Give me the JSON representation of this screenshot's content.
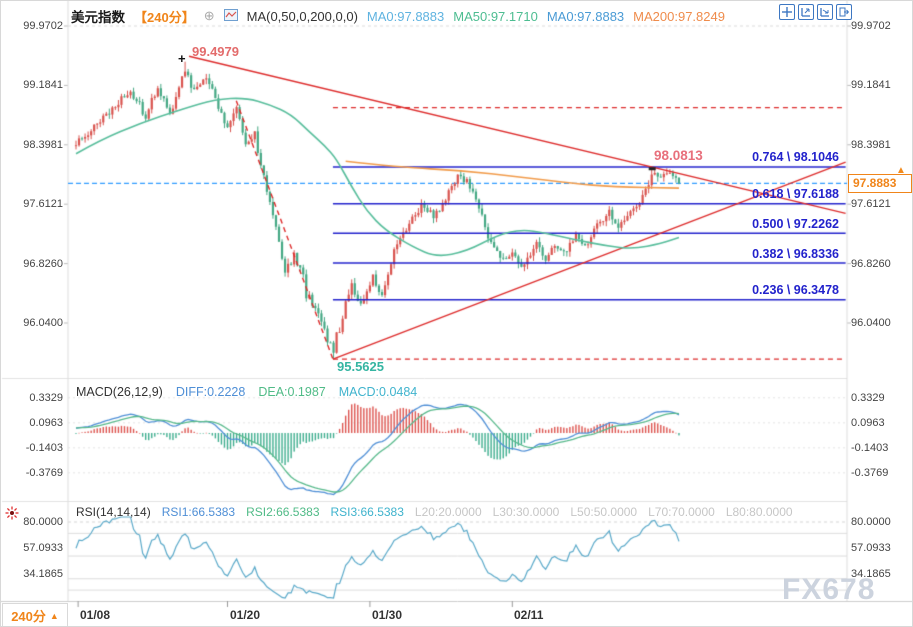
{
  "header": {
    "symbol": "美元指数",
    "period_tag": "【240分】",
    "ma_settings": "MA(0,50,0,200,0,0)",
    "ma_values": [
      {
        "label": "MA0:97.8883"
      },
      {
        "label": "MA50:97.1710"
      },
      {
        "label": "MA0:97.8883"
      },
      {
        "label": "MA200:97.8249"
      }
    ],
    "toolbar_icons": [
      "crosshair",
      "scale-y-axis",
      "scale-x-axis",
      "pop-out"
    ]
  },
  "main_chart": {
    "y_axis": [
      "99.9702",
      "99.1841",
      "98.3981",
      "97.6121",
      "96.8260",
      "96.0400"
    ],
    "annotations": {
      "swing_high": "99.4979",
      "swing_low": "95.5625",
      "recent_high": "98.0813",
      "last_price": "97.8883",
      "last_price_arrow": "▲"
    },
    "fib_levels": [
      {
        "ratio": 0.764,
        "price": 98.1046,
        "label": "0.764 \\ 98.1046"
      },
      {
        "ratio": 0.618,
        "price": 97.6188,
        "label": "0.618 \\ 97.6188"
      },
      {
        "ratio": 0.5,
        "price": 97.2262,
        "label": "0.500 \\ 97.2262"
      },
      {
        "ratio": 0.382,
        "price": 96.8336,
        "label": "0.382 \\ 96.8336"
      },
      {
        "ratio": 0.236,
        "price": 96.3478,
        "label": "0.236 \\ 96.3478"
      }
    ]
  },
  "macd_panel": {
    "title": "MACD(26,12,9)",
    "diff": "DIFF:0.2228",
    "dea": "DEA:0.1987",
    "macd": "MACD:0.0484",
    "y_axis": [
      "0.3329",
      "0.0963",
      "-0.1403",
      "-0.3769"
    ]
  },
  "rsi_panel": {
    "title": "RSI(14,14,14)",
    "rsi1": "RSI1:66.5383",
    "rsi2": "RSI2:66.5383",
    "rsi3": "RSI3:66.5383",
    "l20": "L20:20.0000",
    "l30": "L30:30.0000",
    "l50": "L50:50.0000",
    "l70": "L70:70.0000",
    "l80": "L80:80.0000",
    "y_axis": [
      "80.0000",
      "57.0933",
      "34.1865"
    ]
  },
  "x_axis": {
    "period_button": "240分",
    "period_arrow": "▲",
    "ticks": [
      {
        "label": "01/08",
        "bar": 0.7
      },
      {
        "label": "01/20",
        "bar": 50
      },
      {
        "label": "01/30",
        "bar": 97
      },
      {
        "label": "02/11",
        "bar": 144
      }
    ]
  },
  "watermark": "FX678",
  "colors": {
    "up_candle": "#d9544f",
    "down_candle": "#45a884",
    "ma50_line": "#57bd9b",
    "ma200_line": "#f19b4a",
    "fib_line": "#2222cc",
    "trend_line": "#dd2b2b",
    "last_price_line": "#2f9bff",
    "accent_orange": "#f0851a",
    "diff_line": "#4f8fd6",
    "dea_line": "#57b98b",
    "rsi_line": "#5aa9c9",
    "hist_up": "#dd5550",
    "hist_down": "#3fae8f"
  },
  "chart_data": {
    "type": "candlestick",
    "symbol": "美元指数",
    "timeframe": "240分",
    "bars_visible": 200,
    "y_range": {
      "top_price": 99.9702,
      "bottom_price": 96.04
    },
    "macd_axis": [
      0.3329,
      0.0963,
      -0.1403,
      -0.3769
    ],
    "rsi_axis": [
      80.0,
      57.0933,
      34.1865
    ],
    "rsi_grid_levels": [
      80,
      70,
      50,
      30,
      20
    ],
    "indicators": {
      "macd_params": [
        26,
        12,
        9
      ],
      "rsi_params": [
        14,
        14,
        14
      ],
      "diff": 0.2228,
      "dea": 0.1987,
      "macd": 0.0484,
      "rsi": 66.5383
    },
    "close_anchors": [
      [
        -80,
        97.95
      ],
      [
        -60,
        98.02
      ],
      [
        -40,
        98.12
      ],
      [
        -20,
        98.3
      ],
      [
        -8,
        98.36
      ],
      [
        0,
        98.42
      ],
      [
        8,
        98.72
      ],
      [
        14,
        98.95
      ],
      [
        18,
        99.12
      ],
      [
        23,
        98.78
      ],
      [
        27,
        99.18
      ],
      [
        31,
        98.78
      ],
      [
        36,
        99.4
      ],
      [
        39,
        99.1
      ],
      [
        43,
        99.3
      ],
      [
        47,
        98.9
      ],
      [
        50,
        98.6
      ],
      [
        53,
        98.88
      ],
      [
        56,
        98.4
      ],
      [
        59,
        98.55
      ],
      [
        63,
        97.7
      ],
      [
        66,
        97.3
      ],
      [
        69,
        96.68
      ],
      [
        72,
        97.0
      ],
      [
        76,
        96.45
      ],
      [
        80,
        96.15
      ],
      [
        85,
        95.7
      ],
      [
        88,
        96.15
      ],
      [
        91,
        96.55
      ],
      [
        94,
        96.25
      ],
      [
        98,
        96.65
      ],
      [
        101,
        96.38
      ],
      [
        105,
        97.0
      ],
      [
        110,
        97.38
      ],
      [
        114,
        97.58
      ],
      [
        118,
        97.45
      ],
      [
        122,
        97.68
      ],
      [
        126,
        97.98
      ],
      [
        129,
        97.92
      ],
      [
        133,
        97.55
      ],
      [
        137,
        97.08
      ],
      [
        140,
        96.88
      ],
      [
        144,
        96.95
      ],
      [
        148,
        96.78
      ],
      [
        152,
        97.12
      ],
      [
        155,
        96.88
      ],
      [
        158,
        97.06
      ],
      [
        161,
        96.96
      ],
      [
        165,
        97.18
      ],
      [
        168,
        97.06
      ],
      [
        172,
        97.32
      ],
      [
        176,
        97.52
      ],
      [
        179,
        97.3
      ],
      [
        183,
        97.48
      ],
      [
        187,
        97.72
      ],
      [
        190,
        98.0
      ],
      [
        193,
        97.98
      ],
      [
        196,
        98.02
      ],
      [
        199,
        97.8883
      ]
    ],
    "forced": {
      "high_bar": 36,
      "high": 99.4979,
      "low_bar": 85,
      "low": 95.5625,
      "recent_high_bar": 190,
      "recent_high": 98.0813,
      "last_close": 97.8883
    },
    "ma50_points": [
      [
        0,
        98.28
      ],
      [
        8,
        98.46
      ],
      [
        21,
        98.68
      ],
      [
        35,
        98.87
      ],
      [
        46,
        99.0
      ],
      [
        56,
        99.02
      ],
      [
        64,
        98.93
      ],
      [
        71,
        98.8
      ],
      [
        77,
        98.57
      ],
      [
        82,
        98.39
      ],
      [
        86,
        98.21
      ],
      [
        91,
        97.84
      ],
      [
        96,
        97.52
      ],
      [
        102,
        97.27
      ],
      [
        111,
        97.05
      ],
      [
        119,
        96.91
      ],
      [
        129,
        96.99
      ],
      [
        139,
        97.2
      ],
      [
        147,
        97.28
      ],
      [
        155,
        97.23
      ],
      [
        165,
        97.14
      ],
      [
        175,
        97.06
      ],
      [
        184,
        97.02
      ],
      [
        193,
        97.09
      ],
      [
        199,
        97.171
      ]
    ],
    "ma200_points": [
      [
        89,
        98.18
      ],
      [
        107,
        98.1
      ],
      [
        127,
        98.06
      ],
      [
        147,
        97.97
      ],
      [
        164,
        97.89
      ],
      [
        177,
        97.84
      ],
      [
        199,
        97.8249
      ]
    ],
    "trendlines": [
      {
        "name": "descending-resistance",
        "from": [
          37.3,
          99.57
        ],
        "to": [
          254,
          97.49
        ],
        "style": "solid"
      },
      {
        "name": "ascending-support",
        "from": [
          84.8,
          95.5625
        ],
        "to": [
          254,
          98.17
        ],
        "style": "solid"
      },
      {
        "name": "decline-guide",
        "from": [
          52.9,
          98.98
        ],
        "to": [
          84.8,
          95.5625
        ],
        "style": "dashed"
      },
      {
        "name": "fib-1000-level",
        "from": [
          84.8,
          98.8895
        ],
        "to": [
          254,
          98.8895
        ],
        "style": "dashed"
      },
      {
        "name": "fib-0000-level",
        "from": [
          84.8,
          95.5625
        ],
        "to": [
          254,
          95.5625
        ],
        "style": "dashed"
      }
    ],
    "fib_line_span_bars": [
      84.8,
      254
    ],
    "last_price": 97.8883
  }
}
